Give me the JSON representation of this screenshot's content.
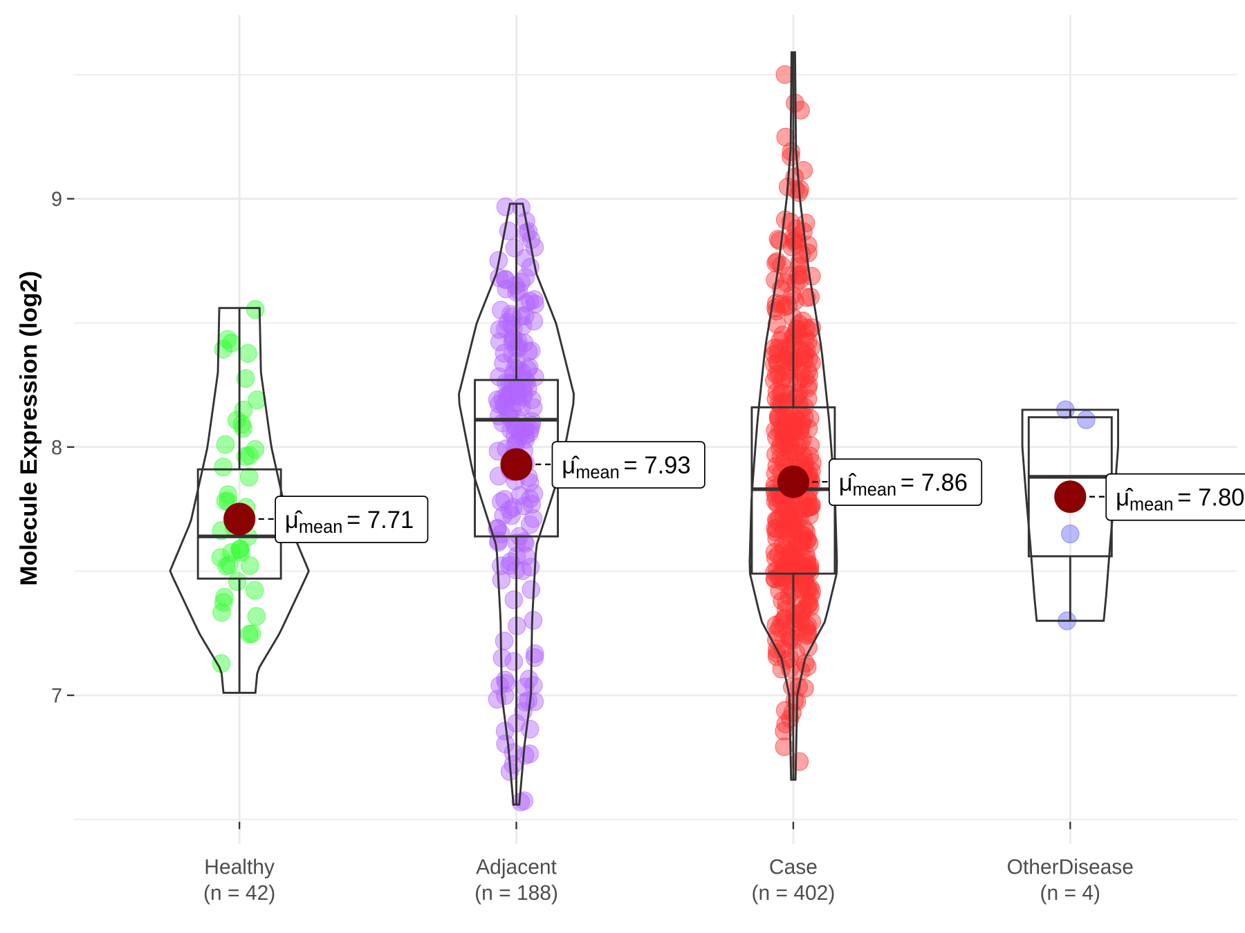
{
  "chart_data": {
    "type": "violin",
    "ylabel": "Molecule Expression (log2)",
    "xlabel": "",
    "ylim": [
      6.46,
      9.75
    ],
    "yticks": [
      7,
      8,
      9
    ],
    "grid": true,
    "legend": "none",
    "colors": {
      "mean_point": "#8b0000",
      "outline": "#333333",
      "grid": "#ebebeb"
    },
    "mean_label_prefix": "mean",
    "groups": [
      {
        "name": "Healthy",
        "n_label": "(n = 42)",
        "n": 42,
        "color": "#33ff33",
        "mean": 7.71,
        "mean_label": "= 7.71",
        "box": {
          "q1": 7.47,
          "median": 7.64,
          "q3": 7.91,
          "min": 7.01,
          "max": 8.56
        },
        "violin": [
          [
            7.01,
            0.23
          ],
          [
            7.1,
            0.26
          ],
          [
            7.25,
            0.58
          ],
          [
            7.5,
            1.0
          ],
          [
            7.7,
            0.7
          ],
          [
            8.0,
            0.46
          ],
          [
            8.3,
            0.31
          ],
          [
            8.56,
            0.29
          ]
        ]
      },
      {
        "name": "Adjacent",
        "n_label": "(n = 188)",
        "n": 188,
        "color": "#b266ff",
        "mean": 7.93,
        "mean_label": "= 7.93",
        "box": {
          "q1": 7.64,
          "median": 8.11,
          "q3": 8.27,
          "min": 6.56,
          "max": 8.98
        },
        "violin": [
          [
            6.56,
            0.05
          ],
          [
            6.8,
            0.14
          ],
          [
            7.0,
            0.25
          ],
          [
            7.3,
            0.27
          ],
          [
            7.6,
            0.34
          ],
          [
            7.9,
            0.75
          ],
          [
            8.2,
            1.0
          ],
          [
            8.5,
            0.68
          ],
          [
            8.7,
            0.34
          ],
          [
            8.98,
            0.11
          ]
        ]
      },
      {
        "name": "Case",
        "n_label": "(n = 402)",
        "n": 402,
        "color": "#ff3333",
        "mean": 7.86,
        "mean_label": "= 7.86",
        "box": {
          "q1": 7.49,
          "median": 7.83,
          "q3": 8.16,
          "min": 6.66,
          "max": 9.59
        },
        "violin": [
          [
            6.66,
            0.05
          ],
          [
            7.0,
            0.09
          ],
          [
            7.15,
            0.27
          ],
          [
            7.3,
            0.73
          ],
          [
            7.5,
            1.0
          ],
          [
            7.8,
            0.95
          ],
          [
            8.1,
            0.82
          ],
          [
            8.4,
            0.64
          ],
          [
            8.7,
            0.36
          ],
          [
            9.0,
            0.15
          ],
          [
            9.2,
            0.06
          ],
          [
            9.59,
            0.04
          ]
        ]
      },
      {
        "name": "OtherDisease",
        "n_label": "(n = 4)",
        "n": 4,
        "color": "#6666ff",
        "mean": 7.8,
        "mean_label": "= 7.80",
        "points": [
          8.15,
          8.11,
          7.65,
          7.3
        ],
        "box": {
          "q1": 7.56,
          "median": 7.88,
          "q3": 8.12,
          "min": 7.3,
          "max": 8.15
        },
        "violin": [
          [
            7.3,
            0.7
          ],
          [
            7.4,
            0.75
          ],
          [
            7.6,
            0.83
          ],
          [
            7.8,
            0.92
          ],
          [
            8.0,
            1.0
          ],
          [
            8.15,
            1.0
          ]
        ]
      }
    ]
  }
}
